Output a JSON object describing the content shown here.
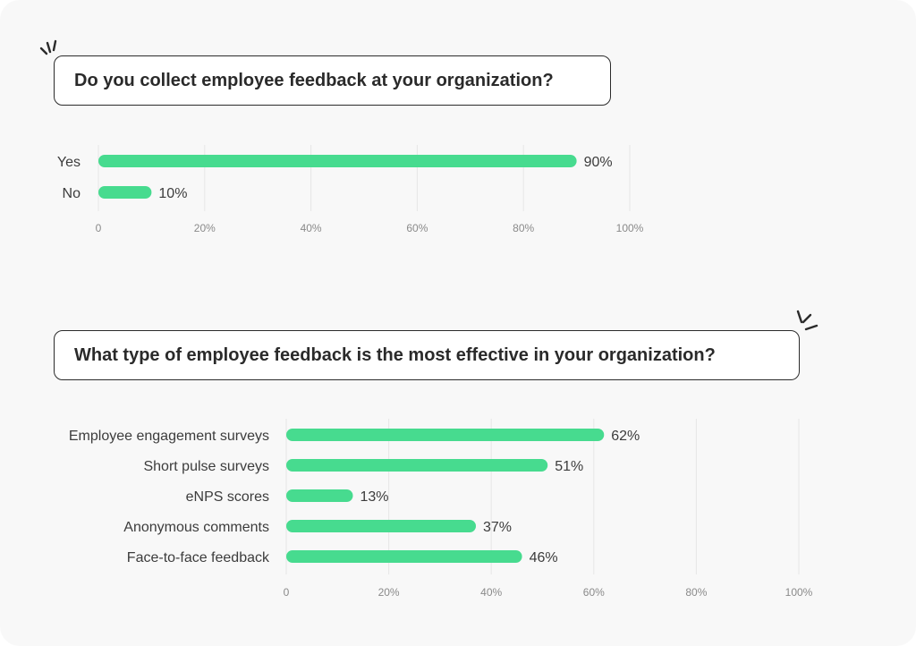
{
  "accent_color": "#47db8f",
  "decoration_icon": "sparkle-lines-icon",
  "charts": [
    {
      "question": "Do you collect employee feedback at your organization?"
    },
    {
      "question": "What type of employee feedback is the most effective in your organization?"
    }
  ],
  "chart_data": [
    {
      "type": "bar",
      "orientation": "horizontal",
      "title": "Do you collect employee feedback at your organization?",
      "categories": [
        "Yes",
        "No"
      ],
      "values": [
        90,
        10
      ],
      "value_labels": [
        "90%",
        "10%"
      ],
      "xlim": [
        0,
        100
      ],
      "x_ticks": [
        "0",
        "20%",
        "40%",
        "60%",
        "80%",
        "100%"
      ],
      "grid": true,
      "color": "#47db8f"
    },
    {
      "type": "bar",
      "orientation": "horizontal",
      "title": "What type of employee feedback is the most effective in your organization?",
      "categories": [
        "Employee engagement surveys",
        "Short pulse surveys",
        "eNPS scores",
        "Anonymous comments",
        "Face-to-face feedback"
      ],
      "values": [
        62,
        51,
        13,
        37,
        46
      ],
      "value_labels": [
        "62%",
        "51%",
        "13%",
        "37%",
        "46%"
      ],
      "xlim": [
        0,
        100
      ],
      "x_ticks": [
        "0",
        "20%",
        "40%",
        "60%",
        "80%",
        "100%"
      ],
      "grid": true,
      "color": "#47db8f"
    }
  ]
}
